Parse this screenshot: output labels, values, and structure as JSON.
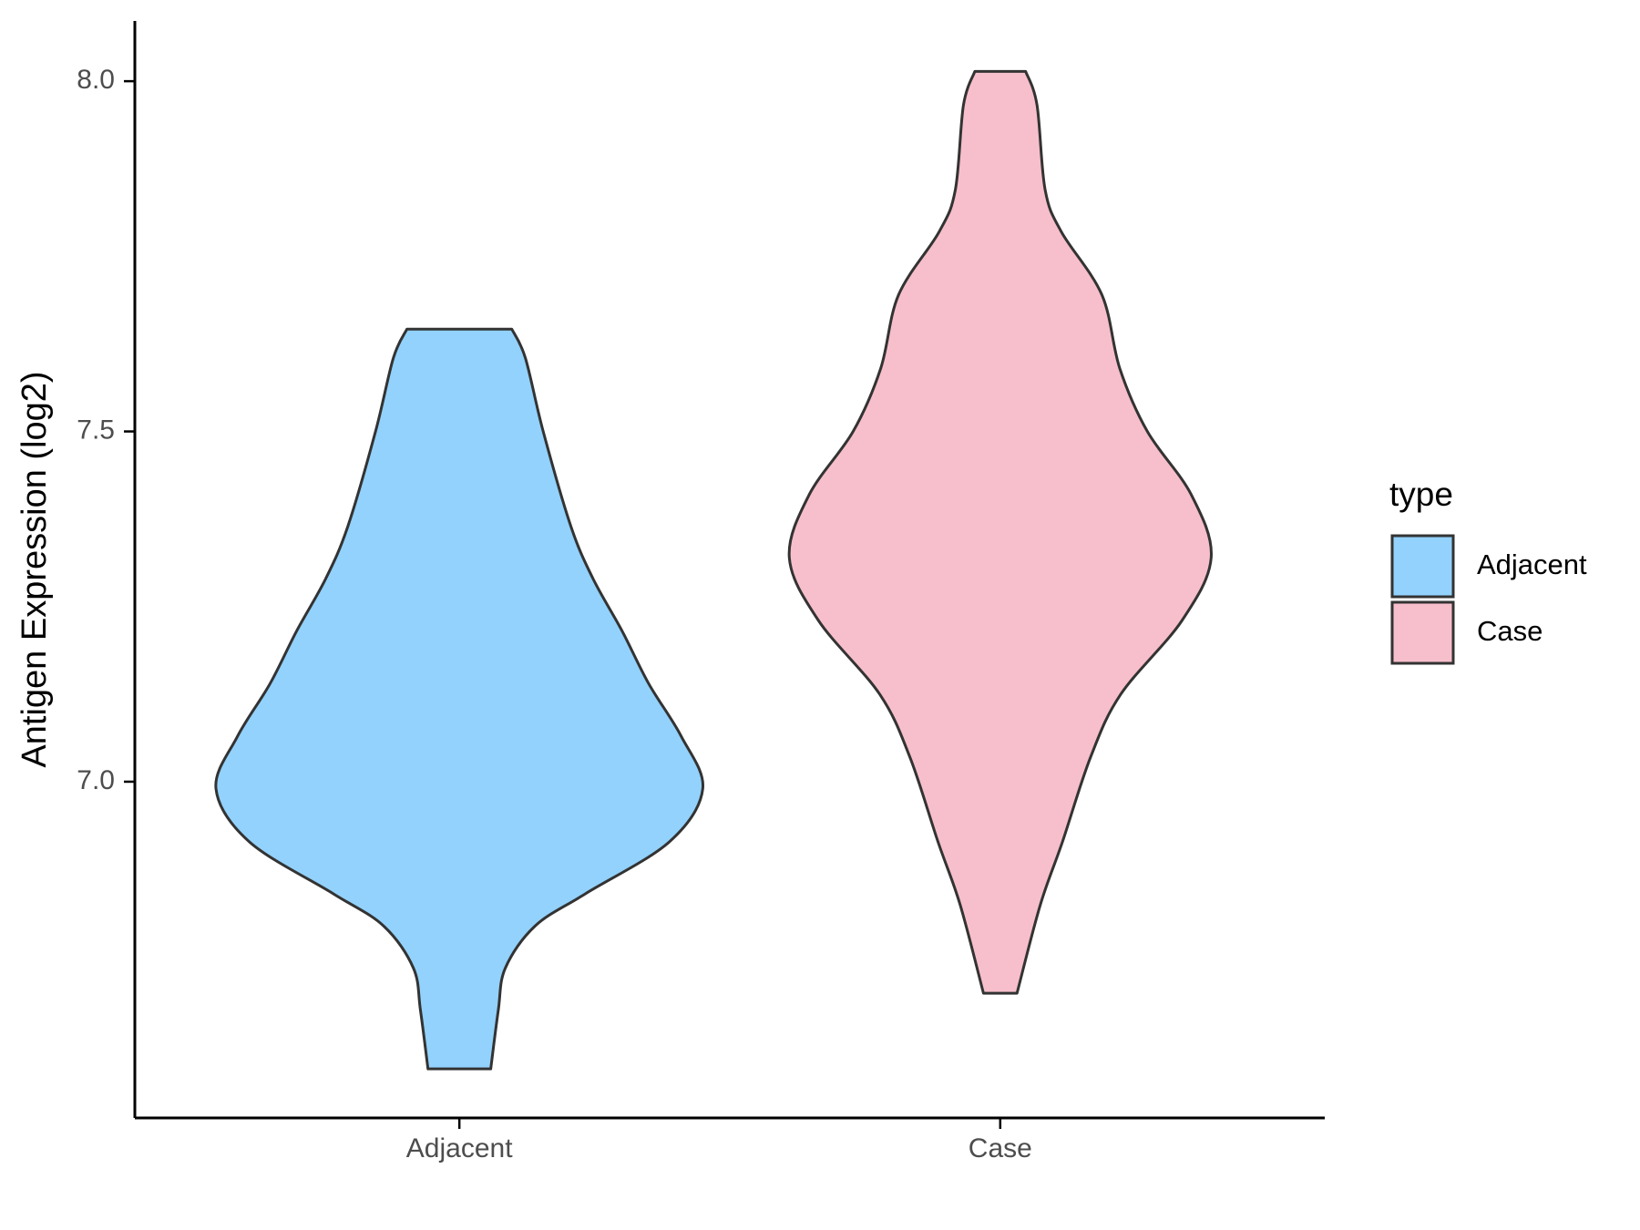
{
  "chart_data": {
    "type": "violin",
    "ylabel": "Antigen Expression (log2)",
    "categories": [
      "Adjacent",
      "Case"
    ],
    "legend_title": "type",
    "legend": "right",
    "ylim": [
      6.52,
      8.086
    ],
    "yticks": [
      {
        "value": 7,
        "label": "7.0"
      },
      {
        "value": 7.5,
        "label": "7.5"
      },
      {
        "value": 8,
        "label": "8.0"
      }
    ],
    "series": [
      {
        "name": "Adjacent",
        "color": "#92d2fd",
        "y": [
          7.646,
          7.605,
          7.5,
          7.365,
          7.29,
          7.215,
          7.14,
          7.065,
          6.99,
          6.914,
          6.84,
          6.794,
          6.734,
          6.674,
          6.59
        ],
        "density": [
          0.097,
          0.122,
          0.155,
          0.206,
          0.247,
          0.301,
          0.35,
          0.41,
          0.45,
          0.388,
          0.233,
          0.14,
          0.085,
          0.072,
          0.058
        ]
      },
      {
        "name": "Case",
        "color": "#f7bfcb",
        "y": [
          8.014,
          7.966,
          7.845,
          7.785,
          7.695,
          7.59,
          7.5,
          7.41,
          7.32,
          7.23,
          7.125,
          7.035,
          6.914,
          6.824,
          6.698
        ],
        "density": [
          0.047,
          0.068,
          0.083,
          0.113,
          0.188,
          0.221,
          0.272,
          0.353,
          0.39,
          0.336,
          0.223,
          0.167,
          0.115,
          0.074,
          0.031
        ]
      }
    ]
  }
}
